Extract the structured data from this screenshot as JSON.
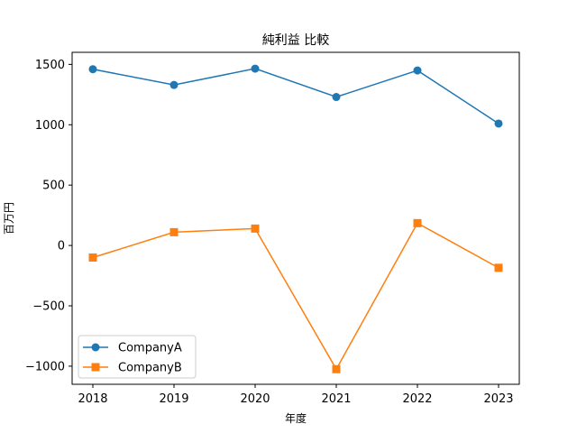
{
  "chart_data": {
    "type": "line",
    "title": "純利益 比較",
    "xlabel": "年度",
    "ylabel": "百万円",
    "x": [
      "2018",
      "2019",
      "2020",
      "2021",
      "2022",
      "2023"
    ],
    "series": [
      {
        "name": "CompanyA",
        "values": [
          1460,
          1330,
          1465,
          1230,
          1450,
          1010
        ],
        "color": "#1f77b4",
        "marker": "circle"
      },
      {
        "name": "CompanyB",
        "values": [
          -100,
          110,
          140,
          -1025,
          185,
          -185
        ],
        "color": "#ff7f0e",
        "marker": "square"
      }
    ],
    "ylim": [
      -1150,
      1600
    ],
    "yticks": [
      "1500",
      "1000",
      "500",
      "0",
      "−500",
      "−1000"
    ],
    "ytick_values": [
      1500,
      1000,
      500,
      0,
      -500,
      -1000
    ],
    "grid": false,
    "legend_position": "lower-left"
  }
}
